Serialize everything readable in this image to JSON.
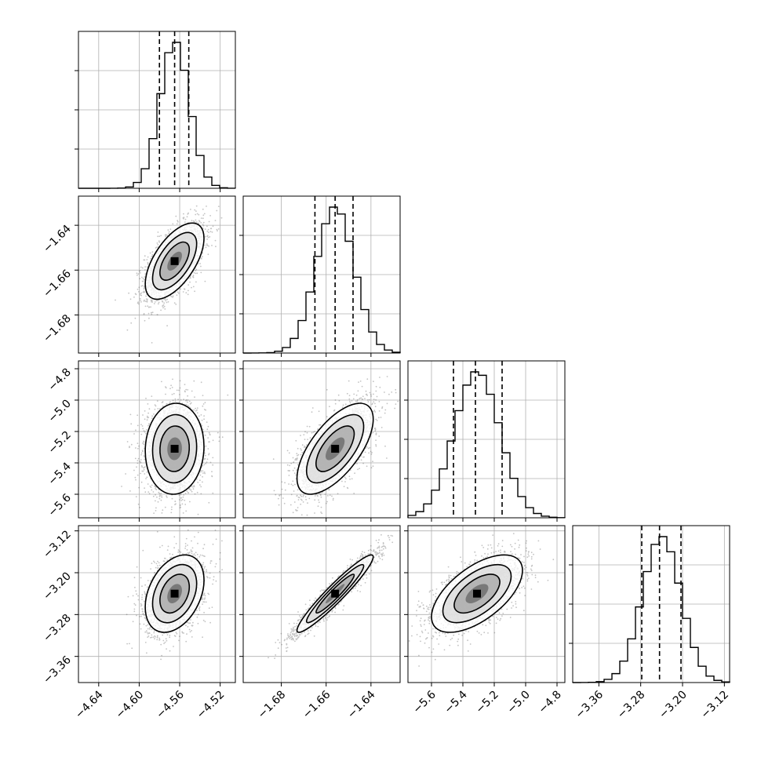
{
  "chart_data": {
    "type": "scatter",
    "title": "",
    "labels": [
      "",
      "",
      "",
      ""
    ],
    "parameters": [
      {
        "index": 0,
        "mean": -4.565,
        "sigma": 0.0145,
        "lim": [
          -4.66,
          -4.505
        ],
        "quantiles": [
          -4.58,
          -4.565,
          -4.551
        ],
        "ticks": [
          -4.64,
          -4.6,
          -4.56,
          -4.52
        ],
        "tick_labels": [
          "−4.64",
          "−4.60",
          "−4.56",
          "−4.52"
        ]
      },
      {
        "index": 1,
        "mean": -1.656,
        "sigma": 0.0085,
        "lim": [
          -1.697,
          -1.627
        ],
        "quantiles": [
          -1.665,
          -1.656,
          -1.648
        ],
        "ticks": [
          -1.68,
          -1.66,
          -1.64
        ],
        "tick_labels": [
          "−1.68",
          "−1.66",
          "−1.64"
        ]
      },
      {
        "index": 2,
        "mean": -5.31,
        "sigma": 0.145,
        "lim": [
          -5.75,
          -4.75
        ],
        "quantiles": [
          -5.46,
          -5.32,
          -5.15
        ],
        "ticks": [
          -5.6,
          -5.4,
          -5.2,
          -5.0,
          -4.8
        ],
        "tick_labels": [
          "−5.6",
          "−5.4",
          "−5.2",
          "−5.0",
          "−4.8"
        ]
      },
      {
        "index": 3,
        "mean": -3.24,
        "sigma": 0.037,
        "lim": [
          -3.41,
          -3.11
        ],
        "quantiles": [
          -3.278,
          -3.244,
          -3.203
        ],
        "ticks": [
          -3.36,
          -3.28,
          -3.2,
          -3.12
        ],
        "tick_labels": [
          "−3.36",
          "−3.28",
          "−3.20",
          "−3.12"
        ]
      }
    ],
    "correlations": {
      "1,0": 0.6,
      "2,0": 0.05,
      "2,1": 0.65,
      "3,0": 0.35,
      "3,1": 0.95,
      "3,2": 0.6
    },
    "contour_sigmas": [
      0.5,
      1.0,
      1.5,
      2.0
    ],
    "histogram_bins": 20,
    "grid": true
  }
}
